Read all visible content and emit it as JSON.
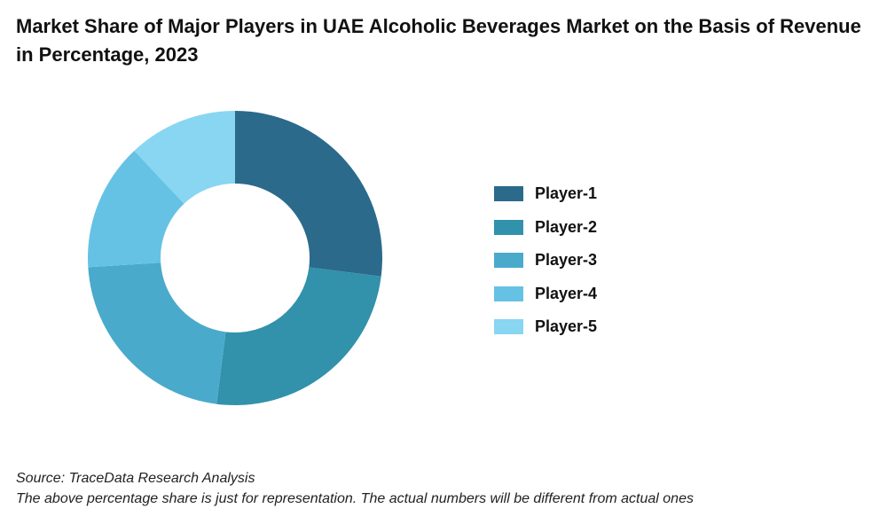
{
  "title": "Market Share of Major Players in UAE Alcoholic Beverages Market on the Basis of Revenue in Percentage, 2023",
  "chart_data": {
    "type": "pie",
    "donut": true,
    "start_angle_deg": 0,
    "direction": "clockwise",
    "categories": [
      "Player-1",
      "Player-2",
      "Player-3",
      "Player-4",
      "Player-5"
    ],
    "values": [
      27,
      25,
      22,
      14,
      12
    ],
    "colors": [
      "#2b6a8b",
      "#3291ab",
      "#4aaacb",
      "#66c2e4",
      "#88d6f1"
    ],
    "legend": "right"
  },
  "source": "Source: TraceData Research Analysis",
  "note": "The above percentage share is just for representation. The actual numbers will be different from actual ones"
}
